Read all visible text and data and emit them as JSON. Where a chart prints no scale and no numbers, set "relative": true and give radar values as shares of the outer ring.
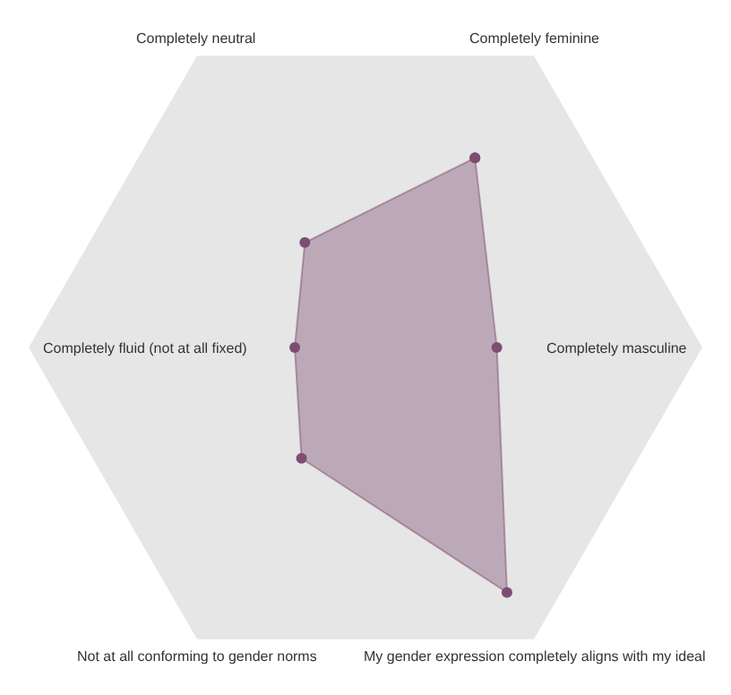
{
  "chart_data": {
    "type": "radar",
    "relative": true,
    "categories": [
      "Completely feminine",
      "Completely masculine",
      "My gender expression completely aligns with my ideal",
      "Not at all conforming to gender norms",
      "Completely fluid (not at all fixed)",
      "Completely neutral"
    ],
    "series": [
      {
        "color": "#7d4e72",
        "values": [
          0.65,
          0.39,
          0.84,
          0.38,
          0.21,
          0.36
        ]
      }
    ],
    "marker": "circle",
    "grid": false
  }
}
